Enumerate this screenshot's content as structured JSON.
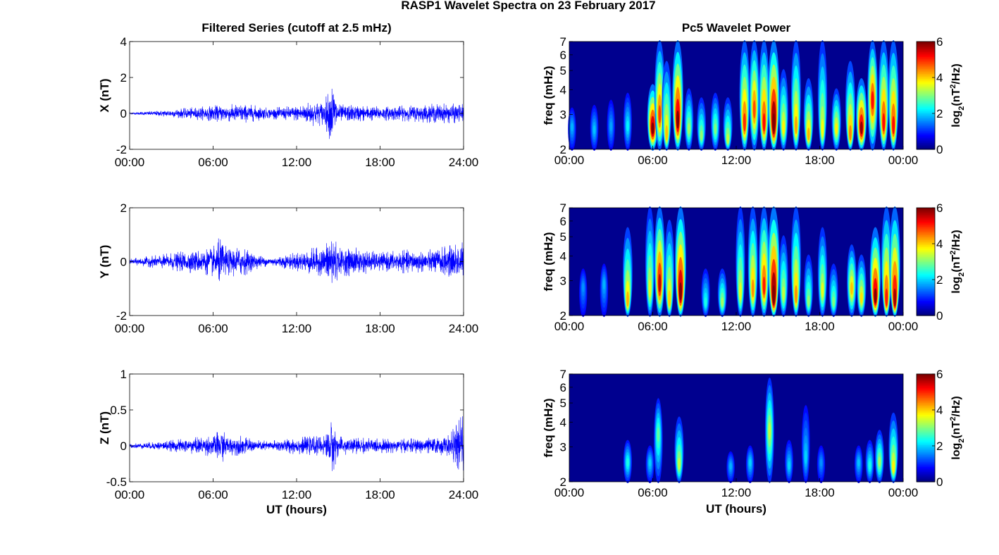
{
  "figure": {
    "title": "RASP1 Wavelet Spectra on 23 February 2017",
    "left_title": "Filtered Series (cutoff at 2.5 mHz)",
    "right_title": "Pc5 Wavelet Power",
    "colors": {
      "trace": "#0000ff",
      "axis": "#000000",
      "spec_bg": "#00008f"
    }
  },
  "chart_data": [
    {
      "type": "line",
      "panel": "x-series",
      "xlabel": "",
      "ylabel": "X (nT)",
      "x_ticks": [
        "00:00",
        "06:00",
        "12:00",
        "18:00",
        "24:00"
      ],
      "xlim": [
        0,
        24
      ],
      "ylim": [
        -2,
        4
      ],
      "y_ticks": [
        "4",
        "2",
        "0",
        "-2"
      ],
      "series": [
        {
          "envelope_hours": [
            0,
            2,
            4,
            6,
            7,
            8,
            9,
            10,
            12,
            13,
            14,
            14.6,
            15,
            16,
            18,
            20,
            21,
            22,
            23,
            24
          ],
          "envelope_nT": [
            0.05,
            0.15,
            0.3,
            0.45,
            0.5,
            0.55,
            0.45,
            0.3,
            0.45,
            0.7,
            0.7,
            1.9,
            0.5,
            0.5,
            0.4,
            0.45,
            0.5,
            0.55,
            0.55,
            0.55
          ]
        }
      ]
    },
    {
      "type": "line",
      "panel": "y-series",
      "xlabel": "",
      "ylabel": "Y (nT)",
      "x_ticks": [
        "00:00",
        "06:00",
        "12:00",
        "18:00",
        "24:00"
      ],
      "xlim": [
        0,
        24
      ],
      "ylim": [
        -2,
        2
      ],
      "y_ticks": [
        "2",
        "0",
        "-2"
      ],
      "series": [
        {
          "envelope_hours": [
            0,
            2,
            4,
            5,
            6,
            6.5,
            7,
            8,
            9,
            10,
            12,
            13,
            14,
            14.6,
            15,
            16,
            18,
            20,
            21,
            22,
            23,
            24
          ],
          "envelope_nT": [
            0.1,
            0.25,
            0.4,
            0.45,
            0.55,
            0.95,
            0.5,
            0.6,
            0.3,
            0.15,
            0.35,
            0.5,
            0.55,
            1.3,
            0.5,
            0.55,
            0.35,
            0.45,
            0.4,
            0.5,
            0.6,
            0.8
          ]
        }
      ]
    },
    {
      "type": "line",
      "panel": "z-series",
      "xlabel": "UT (hours)",
      "ylabel": "Z (nT)",
      "x_ticks": [
        "00:00",
        "06:00",
        "12:00",
        "18:00",
        "24:00"
      ],
      "xlim": [
        0,
        24
      ],
      "ylim": [
        -0.5,
        1
      ],
      "y_ticks": [
        "1",
        "0.5",
        "0",
        "-0.5"
      ],
      "series": [
        {
          "envelope_hours": [
            0,
            2,
            4,
            6,
            6.6,
            7,
            8,
            9,
            10,
            12,
            14,
            14.6,
            15,
            16,
            18,
            20,
            22,
            23,
            24
          ],
          "envelope_nT": [
            0.03,
            0.06,
            0.1,
            0.15,
            0.25,
            0.13,
            0.14,
            0.08,
            0.07,
            0.12,
            0.14,
            0.38,
            0.13,
            0.12,
            0.1,
            0.1,
            0.12,
            0.15,
            0.5
          ]
        }
      ]
    },
    {
      "type": "heatmap",
      "panel": "x-wavelet",
      "xlabel": "",
      "ylabel": "freq (mHz)",
      "x_ticks": [
        "00:00",
        "06:00",
        "12:00",
        "18:00",
        "00:00"
      ],
      "xlim": [
        0,
        24
      ],
      "ylim": [
        2,
        7
      ],
      "y_scale": "log",
      "y_ticks": [
        "7",
        "6",
        "5",
        "4",
        "3",
        "2"
      ],
      "colorbar": {
        "label": "log2(nT2/Hz)",
        "range": [
          0,
          6
        ],
        "ticks": [
          "6",
          "4",
          "2",
          "0"
        ]
      },
      "bursts": [
        {
          "t": 0.2,
          "f": 2.6,
          "v": 1.2,
          "top": 3.2
        },
        {
          "t": 1.8,
          "f": 2.5,
          "v": 1.3,
          "top": 3.3
        },
        {
          "t": 3.0,
          "f": 2.6,
          "v": 1.1,
          "top": 3.5
        },
        {
          "t": 4.2,
          "f": 2.6,
          "v": 1.6,
          "top": 3.8
        },
        {
          "t": 6.0,
          "f": 2.5,
          "v": 5.6,
          "top": 4.2
        },
        {
          "t": 6.5,
          "f": 2.9,
          "v": 4.3,
          "top": 7.0
        },
        {
          "t": 7.0,
          "f": 2.3,
          "v": 3.5,
          "top": 5.5
        },
        {
          "t": 7.8,
          "f": 2.7,
          "v": 5.4,
          "top": 7.0
        },
        {
          "t": 8.6,
          "f": 2.5,
          "v": 2.6,
          "top": 4.0
        },
        {
          "t": 9.5,
          "f": 2.3,
          "v": 2.5,
          "top": 3.6
        },
        {
          "t": 10.5,
          "f": 2.5,
          "v": 2.4,
          "top": 3.8
        },
        {
          "t": 11.4,
          "f": 2.2,
          "v": 2.8,
          "top": 3.6
        },
        {
          "t": 12.6,
          "f": 2.6,
          "v": 4.4,
          "top": 7.0
        },
        {
          "t": 13.3,
          "f": 3.1,
          "v": 4.2,
          "top": 7.0
        },
        {
          "t": 14.0,
          "f": 2.6,
          "v": 4.6,
          "top": 7.0
        },
        {
          "t": 14.7,
          "f": 2.6,
          "v": 6.0,
          "top": 7.0
        },
        {
          "t": 15.4,
          "f": 2.5,
          "v": 3.2,
          "top": 5.0
        },
        {
          "t": 16.3,
          "f": 2.5,
          "v": 3.7,
          "top": 7.0
        },
        {
          "t": 17.2,
          "f": 2.3,
          "v": 3.6,
          "top": 4.5
        },
        {
          "t": 18.2,
          "f": 2.4,
          "v": 3.1,
          "top": 7.0
        },
        {
          "t": 19.2,
          "f": 2.5,
          "v": 3.2,
          "top": 4.0
        },
        {
          "t": 20.2,
          "f": 2.3,
          "v": 3.9,
          "top": 5.5
        },
        {
          "t": 21.0,
          "f": 2.5,
          "v": 5.3,
          "top": 4.5
        },
        {
          "t": 21.8,
          "f": 3.5,
          "v": 4.6,
          "top": 7.0
        },
        {
          "t": 22.6,
          "f": 2.6,
          "v": 4.6,
          "top": 7.0
        },
        {
          "t": 23.3,
          "f": 2.5,
          "v": 4.6,
          "top": 7.0
        }
      ]
    },
    {
      "type": "heatmap",
      "panel": "y-wavelet",
      "xlabel": "",
      "ylabel": "freq (mHz)",
      "x_ticks": [
        "00:00",
        "06:00",
        "12:00",
        "18:00",
        "00:00"
      ],
      "xlim": [
        0,
        24
      ],
      "ylim": [
        2,
        7
      ],
      "y_scale": "log",
      "y_ticks": [
        "7",
        "6",
        "5",
        "4",
        "3",
        "2"
      ],
      "colorbar": {
        "label": "log2(nT2/Hz)",
        "range": [
          0,
          6
        ],
        "ticks": [
          "6",
          "4",
          "2",
          "0"
        ]
      },
      "bursts": [
        {
          "t": 1.0,
          "f": 2.8,
          "v": 1.0,
          "top": 3.4
        },
        {
          "t": 2.5,
          "f": 2.9,
          "v": 1.2,
          "top": 3.6
        },
        {
          "t": 4.2,
          "f": 2.3,
          "v": 3.6,
          "top": 5.5
        },
        {
          "t": 5.8,
          "f": 2.6,
          "v": 3.0,
          "top": 7.0
        },
        {
          "t": 6.5,
          "f": 2.8,
          "v": 5.0,
          "top": 7.0
        },
        {
          "t": 7.2,
          "f": 2.3,
          "v": 3.4,
          "top": 6.0
        },
        {
          "t": 8.0,
          "f": 2.5,
          "v": 5.6,
          "top": 7.0
        },
        {
          "t": 9.8,
          "f": 2.3,
          "v": 1.8,
          "top": 3.4
        },
        {
          "t": 11.0,
          "f": 2.3,
          "v": 2.6,
          "top": 3.4
        },
        {
          "t": 12.3,
          "f": 2.5,
          "v": 3.0,
          "top": 7.0
        },
        {
          "t": 13.2,
          "f": 2.6,
          "v": 3.8,
          "top": 7.0
        },
        {
          "t": 14.0,
          "f": 2.7,
          "v": 4.5,
          "top": 7.0
        },
        {
          "t": 14.7,
          "f": 2.4,
          "v": 6.0,
          "top": 7.0
        },
        {
          "t": 15.4,
          "f": 2.5,
          "v": 2.8,
          "top": 5.0
        },
        {
          "t": 16.3,
          "f": 2.4,
          "v": 3.8,
          "top": 7.0
        },
        {
          "t": 17.2,
          "f": 2.3,
          "v": 2.5,
          "top": 4.0
        },
        {
          "t": 18.2,
          "f": 2.6,
          "v": 3.0,
          "top": 5.5
        },
        {
          "t": 19.0,
          "f": 2.3,
          "v": 2.4,
          "top": 3.6
        },
        {
          "t": 20.3,
          "f": 2.7,
          "v": 3.5,
          "top": 4.5
        },
        {
          "t": 21.0,
          "f": 2.4,
          "v": 3.3,
          "top": 4.0
        },
        {
          "t": 22.0,
          "f": 2.4,
          "v": 5.4,
          "top": 5.5
        },
        {
          "t": 22.8,
          "f": 2.3,
          "v": 4.5,
          "top": 7.0
        },
        {
          "t": 23.4,
          "f": 2.3,
          "v": 5.2,
          "top": 7.0
        }
      ]
    },
    {
      "type": "heatmap",
      "panel": "z-wavelet",
      "xlabel": "UT (hours)",
      "ylabel": "freq (mHz)",
      "x_ticks": [
        "00:00",
        "06:00",
        "12:00",
        "18:00",
        "00:00"
      ],
      "xlim": [
        0,
        24
      ],
      "ylim": [
        2,
        7
      ],
      "y_scale": "log",
      "y_ticks": [
        "7",
        "6",
        "5",
        "4",
        "3",
        "2"
      ],
      "colorbar": {
        "label": "log2(nT2/Hz)",
        "range": [
          0,
          6
        ],
        "ticks": [
          "6",
          "4",
          "2",
          "0"
        ]
      },
      "bursts": [
        {
          "t": 4.2,
          "f": 2.5,
          "v": 1.8,
          "top": 3.2
        },
        {
          "t": 5.8,
          "f": 2.5,
          "v": 1.4,
          "top": 3.0
        },
        {
          "t": 6.4,
          "f": 3.5,
          "v": 2.2,
          "top": 5.2
        },
        {
          "t": 7.9,
          "f": 2.4,
          "v": 2.8,
          "top": 4.2
        },
        {
          "t": 11.6,
          "f": 2.4,
          "v": 1.2,
          "top": 2.8
        },
        {
          "t": 13.0,
          "f": 2.5,
          "v": 1.4,
          "top": 3.0
        },
        {
          "t": 14.4,
          "f": 3.6,
          "v": 2.8,
          "top": 6.6
        },
        {
          "t": 15.8,
          "f": 2.4,
          "v": 1.4,
          "top": 3.2
        },
        {
          "t": 17.0,
          "f": 2.6,
          "v": 1.4,
          "top": 4.8
        },
        {
          "t": 18.1,
          "f": 2.5,
          "v": 1.0,
          "top": 3.0
        },
        {
          "t": 20.8,
          "f": 2.5,
          "v": 1.3,
          "top": 3.0
        },
        {
          "t": 21.6,
          "f": 2.4,
          "v": 1.8,
          "top": 3.2
        },
        {
          "t": 22.3,
          "f": 2.5,
          "v": 2.6,
          "top": 3.6
        },
        {
          "t": 23.3,
          "f": 2.3,
          "v": 3.2,
          "top": 4.4
        }
      ]
    }
  ]
}
